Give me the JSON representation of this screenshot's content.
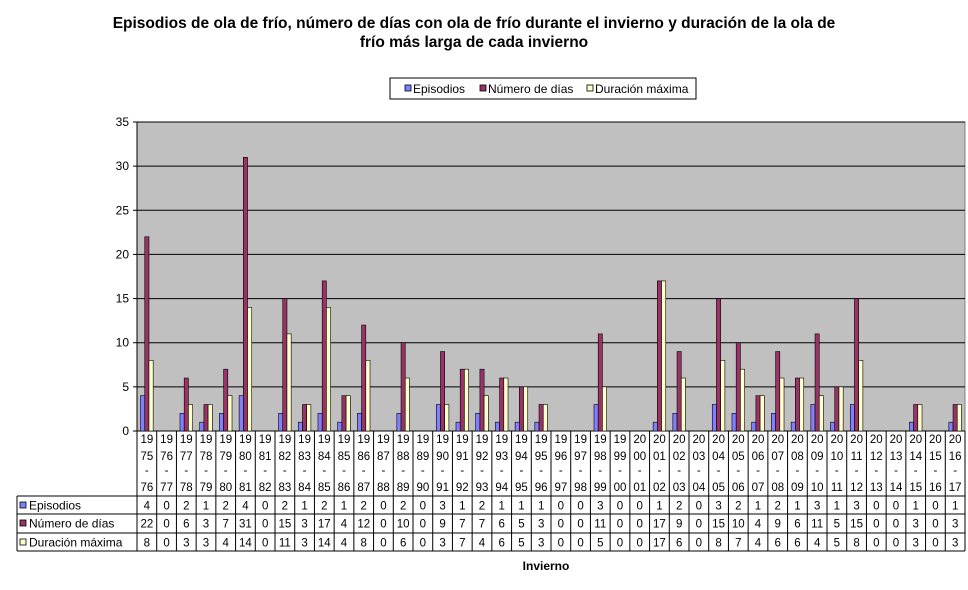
{
  "chart_data": {
    "type": "bar",
    "title_lines": [
      "Episodios de ola de frío, número de días con ola de frío durante el invierno y duración de la ola de",
      "frío más larga de cada invierno"
    ],
    "xlabel": "Invierno",
    "ylabel": "",
    "ylim": [
      0,
      35
    ],
    "yticks": [
      "0",
      "5",
      "10",
      "15",
      "20",
      "25",
      "30",
      "35"
    ],
    "grid": true,
    "legend_position": "top-center",
    "categories": [
      [
        "19",
        "75",
        "-",
        "76"
      ],
      [
        "19",
        "76",
        "-",
        "77"
      ],
      [
        "19",
        "77",
        "-",
        "78"
      ],
      [
        "19",
        "78",
        "-",
        "79"
      ],
      [
        "19",
        "79",
        "-",
        "80"
      ],
      [
        "19",
        "80",
        "-",
        "81"
      ],
      [
        "19",
        "81",
        "-",
        "82"
      ],
      [
        "19",
        "82",
        "-",
        "83"
      ],
      [
        "19",
        "83",
        "-",
        "84"
      ],
      [
        "19",
        "84",
        "-",
        "85"
      ],
      [
        "19",
        "85",
        "-",
        "86"
      ],
      [
        "19",
        "86",
        "-",
        "87"
      ],
      [
        "19",
        "87",
        "-",
        "88"
      ],
      [
        "19",
        "88",
        "-",
        "89"
      ],
      [
        "19",
        "89",
        "-",
        "90"
      ],
      [
        "19",
        "90",
        "-",
        "91"
      ],
      [
        "19",
        "91",
        "-",
        "92"
      ],
      [
        "19",
        "92",
        "-",
        "93"
      ],
      [
        "19",
        "93",
        "-",
        "94"
      ],
      [
        "19",
        "94",
        "-",
        "95"
      ],
      [
        "19",
        "95",
        "-",
        "96"
      ],
      [
        "19",
        "96",
        "-",
        "97"
      ],
      [
        "19",
        "97",
        "-",
        "98"
      ],
      [
        "19",
        "98",
        "-",
        "99"
      ],
      [
        "19",
        "99",
        "-",
        "00"
      ],
      [
        "20",
        "00",
        "-",
        "01"
      ],
      [
        "20",
        "01",
        "-",
        "02"
      ],
      [
        "20",
        "02",
        "-",
        "03"
      ],
      [
        "20",
        "03",
        "-",
        "04"
      ],
      [
        "20",
        "04",
        "-",
        "05"
      ],
      [
        "20",
        "05",
        "-",
        "06"
      ],
      [
        "20",
        "06",
        "-",
        "07"
      ],
      [
        "20",
        "07",
        "-",
        "08"
      ],
      [
        "20",
        "08",
        "-",
        "09"
      ],
      [
        "20",
        "09",
        "-",
        "10"
      ],
      [
        "20",
        "10",
        "-",
        "11"
      ],
      [
        "20",
        "11",
        "-",
        "12"
      ],
      [
        "20",
        "12",
        "-",
        "13"
      ],
      [
        "20",
        "13",
        "-",
        "14"
      ],
      [
        "20",
        "14",
        "-",
        "15"
      ],
      [
        "20",
        "15",
        "-",
        "16"
      ],
      [
        "20",
        "16",
        "-",
        "17"
      ]
    ],
    "series": [
      {
        "name": "Episodios",
        "color": "#8080ff",
        "values": [
          4,
          0,
          2,
          1,
          2,
          4,
          0,
          2,
          1,
          2,
          1,
          2,
          0,
          2,
          0,
          3,
          1,
          2,
          1,
          1,
          1,
          0,
          0,
          3,
          0,
          0,
          1,
          2,
          0,
          3,
          2,
          1,
          2,
          1,
          3,
          1,
          3,
          0,
          0,
          1,
          0,
          1
        ]
      },
      {
        "name": "Número de días",
        "color": "#993366",
        "values": [
          22,
          0,
          6,
          3,
          7,
          31,
          0,
          15,
          3,
          17,
          4,
          12,
          0,
          10,
          0,
          9,
          7,
          7,
          6,
          5,
          3,
          0,
          0,
          11,
          0,
          0,
          17,
          9,
          0,
          15,
          10,
          4,
          9,
          6,
          11,
          5,
          15,
          0,
          0,
          3,
          0,
          3
        ]
      },
      {
        "name": "Duración máxima",
        "color": "#ffffcc",
        "values": [
          8,
          0,
          3,
          3,
          4,
          14,
          0,
          11,
          3,
          14,
          4,
          8,
          0,
          6,
          0,
          3,
          7,
          4,
          6,
          5,
          3,
          0,
          0,
          5,
          0,
          0,
          17,
          6,
          0,
          8,
          7,
          4,
          6,
          6,
          4,
          5,
          8,
          0,
          0,
          3,
          0,
          3
        ]
      }
    ]
  },
  "colors": {
    "plot_background": "#c0c0c0",
    "gridline": "#000000",
    "bar_outline": "#000000"
  }
}
